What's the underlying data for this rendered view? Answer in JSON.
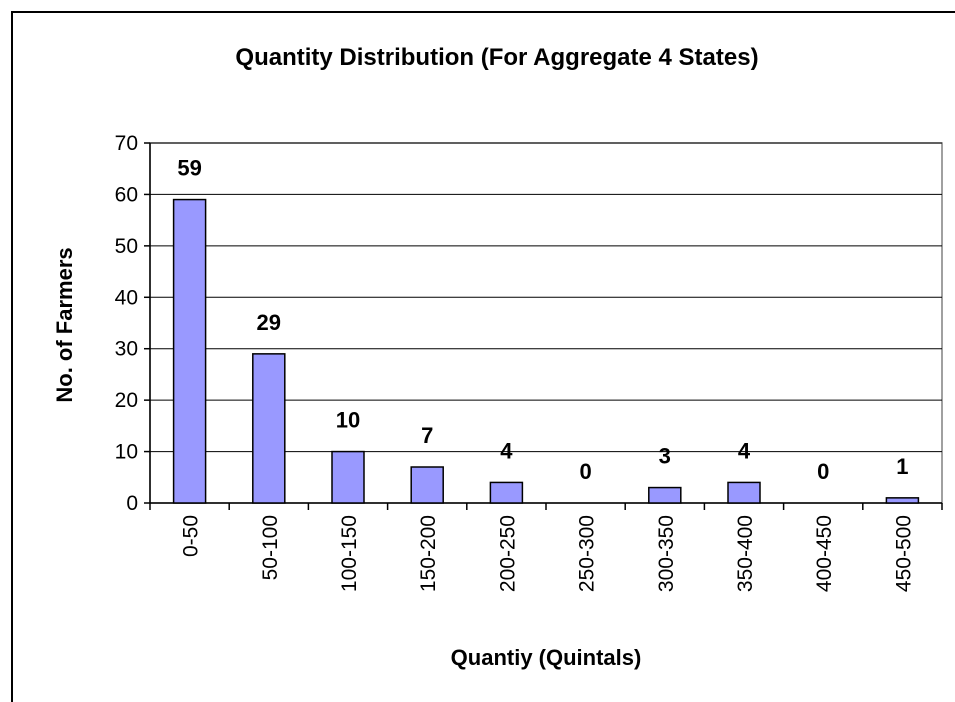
{
  "chart_data": {
    "type": "bar",
    "title": "Quantity Distribution (For Aggregate  4 States)",
    "x_label": "Quantiy (Quintals)",
    "y_label": "No. of Farmers",
    "categories": [
      "0-50",
      "50-100",
      "100-150",
      "150-200",
      "200-250",
      "250-300",
      "300-350",
      "350-400",
      "400-450",
      "450-500"
    ],
    "values": [
      59,
      29,
      10,
      7,
      4,
      0,
      3,
      4,
      0,
      1
    ],
    "color": "#9999ff",
    "ylim": [
      0,
      70
    ],
    "yticks": [
      0,
      10,
      20,
      30,
      40,
      50,
      60,
      70
    ],
    "grid": true
  }
}
